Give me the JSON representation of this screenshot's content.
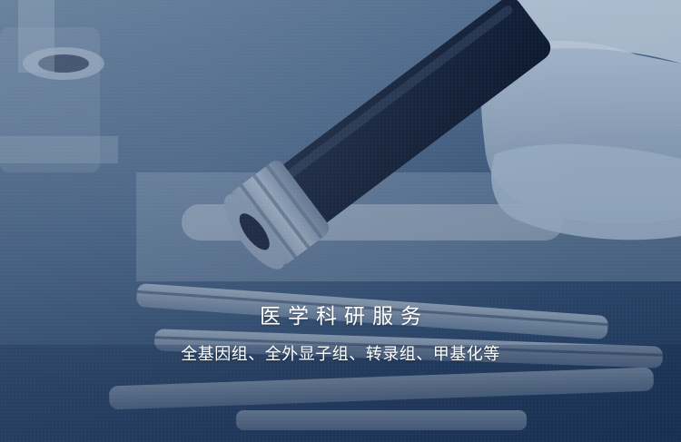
{
  "banner": {
    "title": "医学科研服务",
    "subtitle": "全基因组、全外显子组、转录组、甲基化等"
  }
}
